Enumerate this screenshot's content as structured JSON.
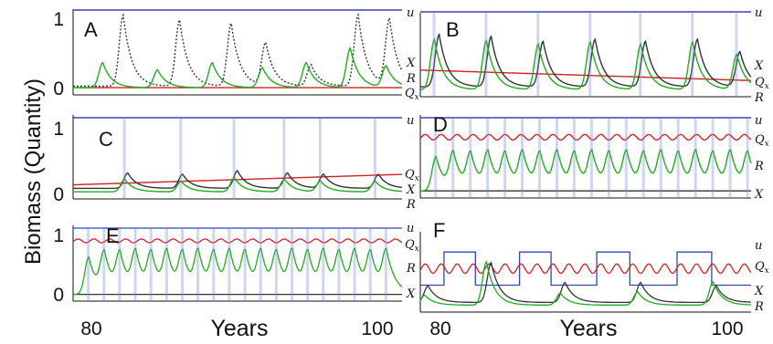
{
  "figure": {
    "ylabel": "Biomass (Quantity)",
    "xlabel": "Years",
    "xticks": [
      "80",
      "100"
    ]
  },
  "colors": {
    "u": "#3344bb",
    "Q": "#cc2222",
    "X": "#333333",
    "R": "#22aa22",
    "frame": "#111111",
    "band": "#7f86d6"
  },
  "chart_data": [
    {
      "panel": "A",
      "type": "line",
      "xlim": [
        80,
        101
      ],
      "ylim": [
        -0.05,
        1.05
      ],
      "yticks": [
        "1",
        "0"
      ],
      "series_labels": [
        "u",
        "X",
        "R",
        "Qx"
      ],
      "series": [
        {
          "name": "u",
          "style": "const",
          "value": 1.0
        },
        {
          "name": "Q",
          "style": "const",
          "value": 0.0
        },
        {
          "name": "X",
          "style": "pulses",
          "dashed": true,
          "peaks": [
            [
              83.2,
              1.0
            ],
            [
              86.8,
              0.93
            ],
            [
              90.1,
              0.88
            ],
            [
              92.3,
              0.6
            ],
            [
              95.2,
              0.3
            ],
            [
              98.2,
              1.0
            ],
            [
              100.2,
              0.93
            ]
          ],
          "baseline": 0.02
        },
        {
          "name": "R",
          "style": "pulses",
          "peaks": [
            [
              81.9,
              0.35
            ],
            [
              85.4,
              0.25
            ],
            [
              88.9,
              0.35
            ],
            [
              92.1,
              0.28
            ],
            [
              94.9,
              0.35
            ],
            [
              97.7,
              0.55
            ],
            [
              100.0,
              0.3
            ]
          ],
          "baseline": 0.0
        }
      ]
    },
    {
      "panel": "B",
      "type": "line",
      "xlim": [
        80,
        101
      ],
      "ylim": [
        -0.05,
        1.05
      ],
      "series_labels": [
        "u",
        "X",
        "Qx",
        "R"
      ],
      "series": [
        {
          "name": "u",
          "style": "const",
          "value": 1.0
        },
        {
          "name": "Q",
          "style": "ramp",
          "from": 0.28,
          "to": 0.13
        },
        {
          "name": "X",
          "style": "pulses",
          "peaks": [
            [
              81.2,
              0.75
            ],
            [
              84.5,
              0.72
            ],
            [
              87.8,
              0.65
            ],
            [
              91.1,
              0.68
            ],
            [
              94.3,
              0.65
            ],
            [
              97.6,
              0.68
            ],
            [
              100.3,
              0.5
            ]
          ],
          "baseline": 0.04
        },
        {
          "name": "R",
          "style": "pulses",
          "peaks": [
            [
              80.9,
              0.72
            ],
            [
              84.2,
              0.7
            ],
            [
              87.5,
              0.65
            ],
            [
              90.8,
              0.68
            ],
            [
              94.0,
              0.65
            ],
            [
              97.3,
              0.68
            ],
            [
              100.1,
              0.5
            ]
          ],
          "baseline": 0.0
        }
      ]
    },
    {
      "panel": "C",
      "type": "line",
      "xlim": [
        80,
        101
      ],
      "ylim": [
        -0.05,
        1.05
      ],
      "yticks": [
        "1",
        "0"
      ],
      "series_labels": [
        "u",
        "Qx",
        "X",
        "R"
      ],
      "series": [
        {
          "name": "u",
          "style": "const",
          "value": 1.0
        },
        {
          "name": "Q",
          "style": "ramp",
          "from": 0.1,
          "to": 0.25
        },
        {
          "name": "X",
          "style": "pulses",
          "peaks": [
            [
              83.5,
              0.22
            ],
            [
              87.0,
              0.2
            ],
            [
              90.5,
              0.25
            ],
            [
              93.7,
              0.22
            ],
            [
              96.0,
              0.2
            ],
            [
              99.5,
              0.2
            ]
          ],
          "baseline": 0.05
        },
        {
          "name": "R",
          "style": "pulses",
          "peaks": [
            [
              83.3,
              0.18
            ],
            [
              86.9,
              0.15
            ],
            [
              90.3,
              0.2
            ],
            [
              93.5,
              0.18
            ],
            [
              95.8,
              0.15
            ],
            [
              99.3,
              0.15
            ]
          ],
          "baseline": 0.0
        }
      ]
    },
    {
      "panel": "D",
      "type": "line",
      "xlim": [
        80,
        101
      ],
      "ylim": [
        -0.05,
        1.05
      ],
      "series_labels": [
        "u",
        "Qx",
        "R",
        "X"
      ],
      "series": [
        {
          "name": "u",
          "style": "const",
          "value": 1.0
        },
        {
          "name": "Q",
          "style": "wave",
          "value": 0.78,
          "amp": 0.04
        },
        {
          "name": "X",
          "style": "const",
          "value": 0.0
        },
        {
          "name": "R",
          "style": "pulses",
          "peaks": [
            [
              81.0,
              0.5
            ],
            [
              82.1,
              0.52
            ],
            [
              83.2,
              0.5
            ],
            [
              84.3,
              0.52
            ],
            [
              85.4,
              0.5
            ],
            [
              86.5,
              0.52
            ],
            [
              87.6,
              0.5
            ],
            [
              88.7,
              0.52
            ],
            [
              89.8,
              0.5
            ],
            [
              90.9,
              0.52
            ],
            [
              92.0,
              0.5
            ],
            [
              93.1,
              0.52
            ],
            [
              94.2,
              0.5
            ],
            [
              95.3,
              0.52
            ],
            [
              96.4,
              0.5
            ],
            [
              97.5,
              0.52
            ],
            [
              98.6,
              0.5
            ],
            [
              99.7,
              0.52
            ],
            [
              100.8,
              0.5
            ]
          ],
          "baseline": 0.0
        }
      ]
    },
    {
      "panel": "E",
      "type": "line",
      "xlim": [
        80,
        101
      ],
      "ylim": [
        -0.05,
        1.05
      ],
      "yticks": [
        "1",
        "0"
      ],
      "series_labels": [
        "u",
        "Qx",
        "R",
        "X"
      ],
      "series": [
        {
          "name": "u",
          "style": "const",
          "value": 1.0
        },
        {
          "name": "Q",
          "style": "wave",
          "value": 0.86,
          "amp": 0.03
        },
        {
          "name": "X",
          "style": "const",
          "value": 0.0
        },
        {
          "name": "R",
          "style": "pulses",
          "peaks": [
            [
              81.0,
              0.6
            ],
            [
              82.0,
              0.62
            ],
            [
              83.0,
              0.6
            ],
            [
              84.0,
              0.62
            ],
            [
              85.0,
              0.6
            ],
            [
              86.0,
              0.62
            ],
            [
              87.0,
              0.6
            ],
            [
              88.0,
              0.62
            ],
            [
              89.0,
              0.6
            ],
            [
              90.0,
              0.62
            ],
            [
              91.0,
              0.6
            ],
            [
              92.0,
              0.62
            ],
            [
              93.0,
              0.6
            ],
            [
              94.0,
              0.62
            ],
            [
              95.0,
              0.6
            ],
            [
              96.0,
              0.62
            ],
            [
              97.0,
              0.6
            ],
            [
              98.0,
              0.62
            ],
            [
              99.0,
              0.6
            ],
            [
              100.0,
              0.62
            ]
          ],
          "baseline": 0.0
        }
      ]
    },
    {
      "panel": "F",
      "type": "line",
      "xlim": [
        80,
        101
      ],
      "ylim": [
        -0.05,
        1.05
      ],
      "series_labels": [
        "u",
        "Qx",
        "X",
        "R"
      ],
      "series": [
        {
          "name": "u",
          "style": "square",
          "low": 0.3,
          "high": 0.8,
          "edges": [
            80.0,
            81.5,
            83.5,
            86.3,
            88.3,
            91.2,
            93.3,
            96.3,
            98.5,
            101.0
          ]
        },
        {
          "name": "Q",
          "style": "wave",
          "value": 0.55,
          "amp": 0.07
        },
        {
          "name": "X",
          "style": "pulses",
          "peaks": [
            [
              80.5,
              0.25
            ],
            [
              84.5,
              0.6
            ],
            [
              89.2,
              0.3
            ],
            [
              94.0,
              0.3
            ],
            [
              98.8,
              0.25
            ]
          ],
          "baseline": 0.04
        },
        {
          "name": "R",
          "style": "pulses",
          "peaks": [
            [
              80.3,
              0.15
            ],
            [
              84.2,
              0.65
            ],
            [
              88.9,
              0.18
            ],
            [
              93.8,
              0.2
            ],
            [
              98.6,
              0.35
            ]
          ],
          "baseline": 0.0
        }
      ]
    }
  ]
}
